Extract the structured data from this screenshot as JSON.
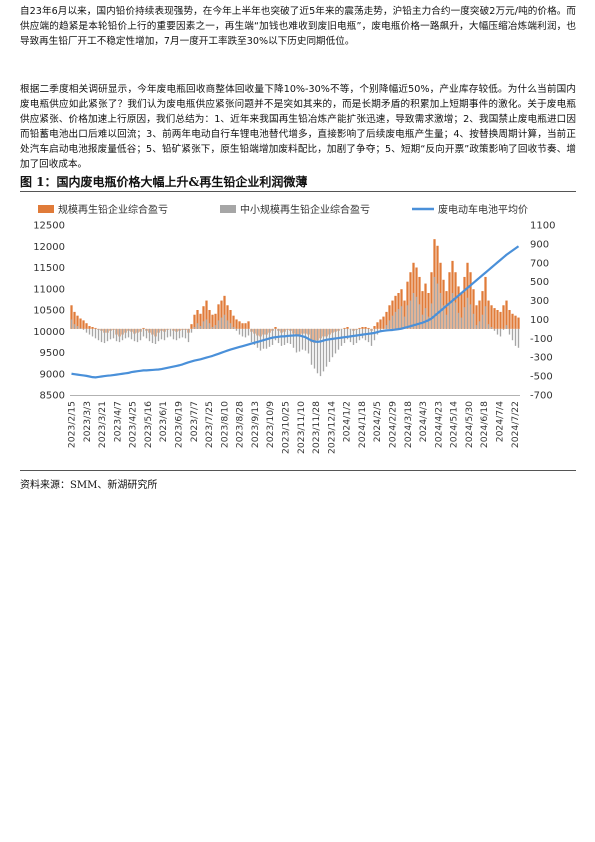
{
  "paragraphs": [
    "自23年6月以来，国内铅价持续表现强势，在今年上半年也突破了近5年来的震荡走势，沪铅主力合约一度突破2万元/吨的价格。而供应端的趋紧是本轮铅价上行的重要因素之一，再生端“加钱也难收到废旧电瓶”，废电瓶价格一路飙升，大幅压缩冶炼端利润，也导致再生铅厂开工不稳定性增加，7月一度开工率跌至30%以下历史同期低位。",
    "根据二季度相关调研显示，今年废电瓶回收商整体回收量下降10%-30%不等，个别降幅近50%，产业库存较低。为什么当前国内废电瓶供应如此紧张了？我们认为废电瓶供应紧张问题并不是突如其来的，而是长期矛盾的积累加上短期事件的激化。关于废电瓶供应紧张、价格加速上行原因，我们总结为：1、近年来我国再生铅冶炼产能扩张迅速，导致需求激增；2、我国禁止废电瓶进口因而铅蓄电池出口后难以回流；3、前两年电动自行车锂电池替代增多，直接影响了后续废电瓶产生量；4、按替换周期计算，当前正处汽车启动电池报废量低谷；5、铅矿紧张下，原生铅端增加废料配比，加剧了争夺；5、短期“反向开票”政策影响了回收节奏、增加了回收成本。"
  ],
  "figure": {
    "title": "图 1：国内废电瓶价格大幅上升&再生铅企业利润微薄",
    "source": "资料来源：SMM、新湖研究所"
  },
  "chart_data": {
    "type": "bar",
    "title": "",
    "xlabel": "",
    "ylabel": "",
    "legend_position": "top",
    "grid": false,
    "colors": {
      "large": "#E07B39",
      "small": "#A6A6A6",
      "price": "#4A90D9"
    },
    "series": [
      {
        "name": "规模再生铅企业综合盈亏",
        "type": "bar",
        "axis": "right"
      },
      {
        "name": "中小规模再生铅企业综合盈亏",
        "type": "bar",
        "axis": "right"
      },
      {
        "name": "废电动车电池平均价",
        "type": "line",
        "axis": "left"
      }
    ],
    "left_axis": {
      "min": 8500,
      "max": 12500,
      "ticks": [
        8500,
        9000,
        9500,
        10000,
        10500,
        11000,
        11500,
        12000,
        12500
      ]
    },
    "right_axis": {
      "min": -700,
      "max": 1100,
      "ticks": [
        -700,
        -500,
        -300,
        -100,
        100,
        300,
        500,
        700,
        900,
        1100
      ]
    },
    "x_labels": [
      "2023/2/15",
      "2023/3/3",
      "2023/3/21",
      "2023/4/7",
      "2023/4/25",
      "2023/5/16",
      "2023/6/1",
      "2023/6/19",
      "2023/7/7",
      "2023/7/25",
      "2023/8/10",
      "2023/8/28",
      "2023/9/13",
      "2023/10/9",
      "2023/10/25",
      "2023/11/10",
      "2023/11/28",
      "2023/12/14",
      "2024/1/2",
      "2024/1/18",
      "2024/2/5",
      "2024/2/29",
      "2024/3/18",
      "2024/4/3",
      "2024/4/23",
      "2024/5/14",
      "2024/5/30",
      "2024/6/18",
      "2024/7/4",
      "2024/7/22"
    ],
    "large_profit": [
      250,
      180,
      140,
      110,
      90,
      60,
      30,
      20,
      10,
      -10,
      -20,
      -40,
      -40,
      -20,
      -10,
      -60,
      -80,
      -60,
      -40,
      -20,
      -30,
      -50,
      -40,
      -30,
      10,
      -20,
      -40,
      -60,
      -80,
      -40,
      -20,
      -30,
      -10,
      0,
      -20,
      -30,
      -20,
      -10,
      -10,
      -40,
      50,
      150,
      200,
      160,
      240,
      300,
      200,
      150,
      160,
      260,
      300,
      350,
      250,
      200,
      140,
      100,
      80,
      60,
      60,
      80,
      -30,
      -50,
      -70,
      -80,
      -60,
      -60,
      -40,
      -20,
      20,
      -20,
      -40,
      -30,
      -10,
      -20,
      -50,
      -80,
      -70,
      -50,
      -50,
      -60,
      -140,
      -150,
      -120,
      -100,
      -80,
      -80,
      -60,
      -40,
      -30,
      -20,
      0,
      10,
      20,
      0,
      -20,
      -10,
      10,
      20,
      20,
      10,
      -20,
      30,
      70,
      100,
      130,
      180,
      250,
      300,
      350,
      380,
      420,
      300,
      500,
      600,
      700,
      650,
      550,
      400,
      480,
      380,
      600,
      950,
      880,
      700,
      520,
      400,
      600,
      720,
      600,
      450,
      380,
      550,
      700,
      600,
      420,
      250,
      300,
      400,
      550,
      300,
      250,
      220,
      200,
      180,
      250,
      300,
      200,
      160,
      140,
      120
    ],
    "small_profit": [
      100,
      50,
      30,
      10,
      -10,
      -40,
      -60,
      -80,
      -100,
      -120,
      -140,
      -150,
      -130,
      -110,
      -100,
      -130,
      -140,
      -120,
      -100,
      -90,
      -110,
      -130,
      -140,
      -120,
      -80,
      -100,
      -130,
      -150,
      -160,
      -130,
      -110,
      -120,
      -90,
      -80,
      -110,
      -120,
      -100,
      -90,
      -100,
      -140,
      -40,
      20,
      60,
      30,
      80,
      100,
      60,
      20,
      40,
      90,
      120,
      150,
      90,
      60,
      20,
      -20,
      -60,
      -80,
      -90,
      -70,
      -140,
      -170,
      -200,
      -230,
      -210,
      -210,
      -190,
      -170,
      -120,
      -150,
      -180,
      -170,
      -150,
      -160,
      -200,
      -250,
      -240,
      -220,
      -230,
      -260,
      -380,
      -420,
      -470,
      -500,
      -450,
      -400,
      -350,
      -300,
      -260,
      -220,
      -180,
      -150,
      -110,
      -140,
      -170,
      -150,
      -120,
      -100,
      -120,
      -140,
      -180,
      -120,
      -60,
      -30,
      0,
      40,
      90,
      140,
      180,
      210,
      240,
      130,
      250,
      300,
      380,
      340,
      260,
      150,
      220,
      130,
      270,
      550,
      480,
      380,
      250,
      150,
      270,
      380,
      280,
      170,
      120,
      230,
      330,
      260,
      160,
      40,
      80,
      150,
      240,
      50,
      20,
      -20,
      -60,
      -80,
      -10,
      40,
      -60,
      -120,
      -180,
      -200
    ],
    "price": [
      9000,
      8990,
      8980,
      8970,
      8960,
      8950,
      8935,
      8920,
      8915,
      8925,
      8935,
      8945,
      8955,
      8960,
      8970,
      8980,
      8990,
      9000,
      9010,
      9020,
      9040,
      9050,
      9060,
      9070,
      9080,
      9080,
      9085,
      9090,
      9095,
      9100,
      9110,
      9125,
      9140,
      9155,
      9170,
      9185,
      9200,
      9220,
      9245,
      9270,
      9290,
      9310,
      9325,
      9340,
      9360,
      9380,
      9400,
      9420,
      9445,
      9470,
      9495,
      9520,
      9545,
      9570,
      9590,
      9610,
      9630,
      9650,
      9670,
      9690,
      9710,
      9730,
      9750,
      9770,
      9790,
      9810,
      9830,
      9850,
      9860,
      9870,
      9880,
      9880,
      9890,
      9895,
      9900,
      9905,
      9900,
      9880,
      9860,
      9820,
      9780,
      9760,
      9750,
      9760,
      9780,
      9800,
      9810,
      9820,
      9830,
      9840,
      9850,
      9860,
      9870,
      9880,
      9890,
      9900,
      9910,
      9920,
      9930,
      9940,
      9950,
      9960,
      9980,
      10000,
      10010,
      10020,
      10025,
      10030,
      10040,
      10050,
      10060,
      10080,
      10100,
      10120,
      10140,
      10160,
      10180,
      10200,
      10230,
      10260,
      10300,
      10360,
      10420,
      10480,
      10540,
      10600,
      10660,
      10720,
      10780,
      10840,
      10900,
      10960,
      11020,
      11080,
      11140,
      11200,
      11260,
      11320,
      11380,
      11440,
      11500,
      11560,
      11620,
      11680,
      11740,
      11800,
      11850,
      11900,
      11950,
      12000
    ]
  }
}
